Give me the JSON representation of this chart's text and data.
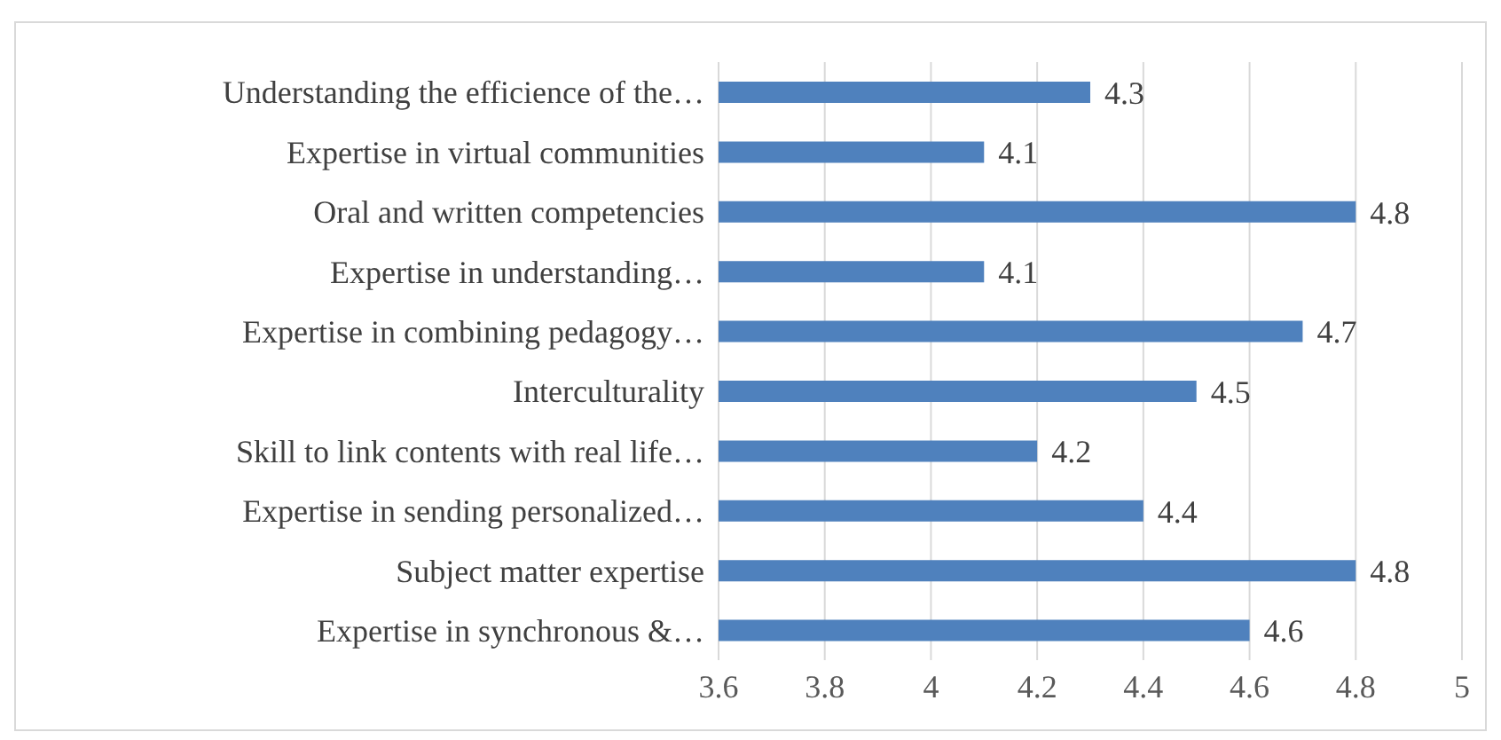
{
  "chart_data": {
    "type": "bar",
    "orientation": "horizontal",
    "categories": [
      "Understanding the efficience of the…",
      "Expertise in virtual communities",
      "Oral and written competencies",
      "Expertise in understanding…",
      "Expertise in combining pedagogy…",
      "Interculturality",
      "Skill to link contents with real life…",
      "Expertise in sending personalized…",
      "Subject matter expertise",
      "Expertise in synchronous &…"
    ],
    "values": [
      4.3,
      4.1,
      4.8,
      4.1,
      4.7,
      4.5,
      4.2,
      4.4,
      4.8,
      4.6
    ],
    "color": "#4f81bd",
    "xlim": [
      3.6,
      5
    ],
    "xticks": [
      3.6,
      3.8,
      4,
      4.2,
      4.4,
      4.6,
      4.8,
      5
    ],
    "grid": "x",
    "data_labels": true
  }
}
